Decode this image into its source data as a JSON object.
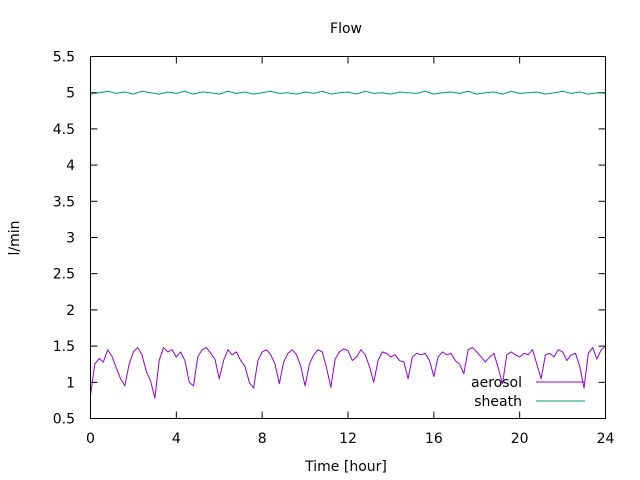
{
  "chart_data": {
    "type": "line",
    "title": "Flow",
    "xlabel": "Time [hour]",
    "ylabel": "l/min",
    "xlim": [
      0,
      24
    ],
    "ylim": [
      0.5,
      5.5
    ],
    "x_ticks": [
      "0",
      "4",
      "8",
      "12",
      "16",
      "20",
      "24"
    ],
    "y_ticks": [
      "0.5",
      "1",
      "1.5",
      "2",
      "2.5",
      "3",
      "3.5",
      "4",
      "4.5",
      "5",
      "5.5"
    ],
    "grid": false,
    "legend_position": "bottom-right",
    "series": [
      {
        "name": "aerosol",
        "color": "#9400d3",
        "x": [
          0.0,
          0.2,
          0.4,
          0.6,
          0.8,
          1.0,
          1.2,
          1.4,
          1.6,
          1.8,
          2.0,
          2.2,
          2.4,
          2.6,
          2.8,
          3.0,
          3.2,
          3.4,
          3.6,
          3.8,
          4.0,
          4.2,
          4.4,
          4.6,
          4.8,
          5.0,
          5.2,
          5.4,
          5.6,
          5.8,
          6.0,
          6.2,
          6.4,
          6.6,
          6.8,
          7.0,
          7.2,
          7.4,
          7.6,
          7.8,
          8.0,
          8.2,
          8.4,
          8.6,
          8.8,
          9.0,
          9.2,
          9.4,
          9.6,
          9.8,
          10.0,
          10.2,
          10.4,
          10.6,
          10.8,
          11.0,
          11.2,
          11.4,
          11.6,
          11.8,
          12.0,
          12.2,
          12.4,
          12.6,
          12.8,
          13.0,
          13.2,
          13.4,
          13.6,
          13.8,
          14.0,
          14.2,
          14.4,
          14.6,
          14.8,
          15.0,
          15.2,
          15.4,
          15.6,
          15.8,
          16.0,
          16.2,
          16.4,
          16.6,
          16.8,
          17.0,
          17.2,
          17.4,
          17.6,
          17.8,
          18.0,
          18.2,
          18.4,
          18.6,
          18.8,
          19.0,
          19.2,
          19.4,
          19.6,
          19.8,
          20.0,
          20.2,
          20.4,
          20.6,
          20.8,
          21.0,
          21.2,
          21.4,
          21.6,
          21.8,
          22.0,
          22.2,
          22.4,
          22.6,
          22.8,
          23.0,
          23.2,
          23.4,
          23.6,
          23.8,
          24.0
        ],
        "values": [
          0.82,
          1.25,
          1.33,
          1.28,
          1.45,
          1.36,
          1.2,
          1.05,
          0.95,
          1.25,
          1.42,
          1.48,
          1.38,
          1.15,
          1.02,
          0.78,
          1.3,
          1.48,
          1.42,
          1.45,
          1.35,
          1.42,
          1.3,
          1.0,
          0.95,
          1.35,
          1.45,
          1.48,
          1.4,
          1.32,
          1.05,
          1.3,
          1.45,
          1.38,
          1.42,
          1.3,
          1.22,
          1.0,
          0.92,
          1.3,
          1.42,
          1.45,
          1.38,
          1.25,
          0.98,
          1.28,
          1.4,
          1.45,
          1.38,
          1.22,
          0.95,
          1.25,
          1.38,
          1.45,
          1.42,
          1.2,
          0.93,
          1.32,
          1.42,
          1.46,
          1.44,
          1.3,
          1.35,
          1.45,
          1.38,
          1.22,
          1.0,
          1.3,
          1.42,
          1.4,
          1.35,
          1.38,
          1.3,
          1.28,
          1.05,
          1.35,
          1.4,
          1.38,
          1.4,
          1.3,
          1.08,
          1.35,
          1.42,
          1.38,
          1.4,
          1.3,
          1.25,
          1.12,
          1.45,
          1.48,
          1.42,
          1.35,
          1.28,
          1.35,
          1.4,
          1.2,
          0.98,
          1.38,
          1.42,
          1.38,
          1.35,
          1.4,
          1.38,
          1.45,
          1.25,
          1.05,
          1.38,
          1.4,
          1.35,
          1.45,
          1.42,
          1.3,
          1.38,
          1.4,
          1.22,
          0.92,
          1.4,
          1.48,
          1.32,
          1.45,
          1.5
        ]
      },
      {
        "name": "sheath",
        "color": "#009e73",
        "x": [
          0.0,
          0.4,
          0.8,
          1.2,
          1.6,
          2.0,
          2.4,
          2.8,
          3.2,
          3.6,
          4.0,
          4.4,
          4.8,
          5.2,
          5.6,
          6.0,
          6.4,
          6.8,
          7.2,
          7.6,
          8.0,
          8.4,
          8.8,
          9.2,
          9.6,
          10.0,
          10.4,
          10.8,
          11.2,
          11.6,
          12.0,
          12.4,
          12.8,
          13.2,
          13.6,
          14.0,
          14.4,
          14.8,
          15.2,
          15.6,
          16.0,
          16.4,
          16.8,
          17.2,
          17.6,
          18.0,
          18.4,
          18.8,
          19.2,
          19.6,
          20.0,
          20.4,
          20.8,
          21.2,
          21.6,
          22.0,
          22.4,
          22.8,
          23.2,
          23.6,
          24.0
        ],
        "values": [
          4.98,
          5.0,
          5.02,
          4.99,
          5.01,
          4.98,
          5.02,
          5.0,
          4.98,
          5.01,
          4.99,
          5.02,
          4.98,
          5.01,
          5.0,
          4.98,
          5.02,
          4.99,
          5.01,
          4.98,
          5.0,
          5.02,
          4.99,
          5.0,
          4.98,
          5.01,
          4.99,
          5.02,
          4.98,
          5.0,
          5.01,
          4.98,
          5.02,
          4.99,
          5.0,
          4.98,
          5.01,
          5.0,
          4.99,
          5.02,
          4.98,
          5.0,
          5.01,
          4.99,
          5.02,
          4.98,
          5.0,
          5.01,
          4.98,
          5.02,
          4.99,
          5.0,
          5.01,
          4.98,
          5.0,
          5.02,
          4.99,
          5.01,
          4.98,
          5.0,
          4.99
        ]
      }
    ]
  }
}
